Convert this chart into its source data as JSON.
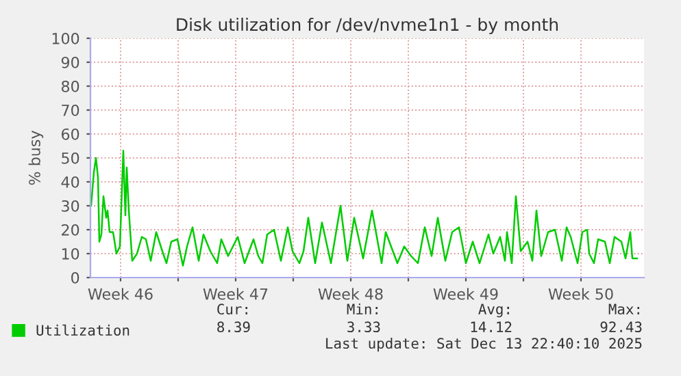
{
  "chart_data": {
    "type": "line",
    "title": "Disk utilization for /dev/nvme1n1 - by month",
    "ylabel": "% busy",
    "series": [
      {
        "name": "Utilization",
        "color": "#00cc00",
        "x": [
          "2025-11-11T17:00",
          "2025-11-11T21:00",
          "2025-11-12T00:00",
          "2025-11-12T03:00",
          "2025-11-12T05:00",
          "2025-11-12T08:00",
          "2025-11-12T11:00",
          "2025-11-12T15:00",
          "2025-11-12T17:00",
          "2025-11-12T20:00",
          "2025-11-13T01:00",
          "2025-11-13T06:00",
          "2025-11-13T11:00",
          "2025-11-13T16:00",
          "2025-11-13T19:00",
          "2025-11-13T21:00",
          "2025-11-14T00:00",
          "2025-11-14T05:00",
          "2025-11-14T12:00",
          "2025-11-14T19:00",
          "2025-11-15T01:00",
          "2025-11-15T08:00",
          "2025-11-15T16:00",
          "2025-11-16T01:00",
          "2025-11-16T07:00",
          "2025-11-16T14:00",
          "2025-11-16T23:00",
          "2025-11-17T07:00",
          "2025-11-17T13:00",
          "2025-11-17T21:00",
          "2025-11-18T06:00",
          "2025-11-18T13:00",
          "2025-11-18T23:00",
          "2025-11-19T09:00",
          "2025-11-19T15:00",
          "2025-11-20T01:00",
          "2025-11-20T15:00",
          "2025-11-21T01:00",
          "2025-11-21T14:00",
          "2025-11-21T21:00",
          "2025-11-22T03:00",
          "2025-11-22T10:00",
          "2025-11-22T20:00",
          "2025-11-23T06:00",
          "2025-11-23T16:00",
          "2025-11-23T23:00",
          "2025-11-24T09:00",
          "2025-11-24T15:00",
          "2025-11-24T22:00",
          "2025-11-25T08:00",
          "2025-11-25T18:00",
          "2025-11-26T07:00",
          "2025-11-26T21:00",
          "2025-11-27T07:00",
          "2025-11-27T17:00",
          "2025-11-28T06:00",
          "2025-11-28T19:00",
          "2025-11-29T09:00",
          "2025-11-29T15:00",
          "2025-11-30T08:00",
          "2025-11-30T18:00",
          "2025-12-01T04:00",
          "2025-12-01T14:00",
          "2025-12-02T00:00",
          "2025-12-02T10:00",
          "2025-12-02T19:00",
          "2025-12-03T06:00",
          "2025-12-03T16:00",
          "2025-12-04T02:00",
          "2025-12-04T12:00",
          "2025-12-04T22:00",
          "2025-12-05T08:00",
          "2025-12-05T21:00",
          "2025-12-06T04:00",
          "2025-12-06T14:00",
          "2025-12-06T21:00",
          "2025-12-07T00:00",
          "2025-12-07T07:00",
          "2025-12-07T13:00",
          "2025-12-07T20:00",
          "2025-12-08T06:00",
          "2025-12-08T13:00",
          "2025-12-08T19:00",
          "2025-12-09T02:00",
          "2025-12-09T12:00",
          "2025-12-09T22:00",
          "2025-12-10T08:00",
          "2025-12-10T15:00",
          "2025-12-10T21:00",
          "2025-12-11T07:00",
          "2025-12-11T14:00",
          "2025-12-11T21:00",
          "2025-12-12T00:00",
          "2025-12-12T07:00",
          "2025-12-12T13:00",
          "2025-12-12T23:00",
          "2025-12-13T06:00",
          "2025-12-13T13:00",
          "2025-12-13T23:00",
          "2025-12-14T05:00",
          "2025-12-14T12:00",
          "2025-12-14T15:00",
          "2025-12-14T22:00"
        ],
        "values": [
          30,
          44,
          50,
          42,
          15,
          18,
          34,
          25,
          28,
          19,
          19,
          10,
          13,
          53,
          26,
          46,
          28,
          7,
          10,
          17,
          16,
          7,
          19,
          11,
          6,
          15,
          16,
          5,
          13,
          21,
          7,
          18,
          11,
          6,
          16,
          9,
          17,
          6,
          16,
          9,
          6,
          18,
          20,
          7,
          21,
          11,
          6,
          11,
          25,
          6,
          23,
          6,
          30,
          7,
          25,
          8,
          28,
          6,
          19,
          6,
          13,
          9,
          6,
          21,
          9,
          25,
          7,
          19,
          21,
          6,
          15,
          6,
          18,
          10,
          17,
          7,
          19,
          6,
          34,
          11,
          15,
          7,
          28,
          9,
          19,
          20,
          7,
          21,
          17,
          6,
          19,
          20,
          10,
          6,
          16,
          15,
          6,
          17,
          15,
          8,
          19,
          8,
          8
        ]
      }
    ],
    "xlim": [
      "2025-11-11T16:00",
      "2025-12-15T08:00"
    ],
    "xticks": [
      {
        "value": "2025-11-13T12:00",
        "label": "Week 46"
      },
      {
        "value": "2025-11-17",
        "label": null
      },
      {
        "value": "2025-11-20T12:00",
        "label": "Week 47"
      },
      {
        "value": "2025-11-24",
        "label": null
      },
      {
        "value": "2025-11-27T12:00",
        "label": "Week 48"
      },
      {
        "value": "2025-12-01",
        "label": null
      },
      {
        "value": "2025-12-04T12:00",
        "label": "Week 49"
      },
      {
        "value": "2025-12-08",
        "label": null
      },
      {
        "value": "2025-12-11T12:00",
        "label": "Week 50"
      }
    ],
    "ylim": [
      0,
      100
    ],
    "yticks": [
      0,
      10,
      20,
      30,
      40,
      50,
      60,
      70,
      80,
      90,
      100
    ],
    "grid": true,
    "legend": "bottom",
    "line_style": "solid",
    "marker": "none",
    "annotations": [
      "Cur:",
      "Min:",
      "Avg:",
      "Max:",
      "8.39",
      "3.33",
      "14.12",
      "92.43",
      "Last update: Sat Dec 13 22:40:10 2025"
    ]
  }
}
